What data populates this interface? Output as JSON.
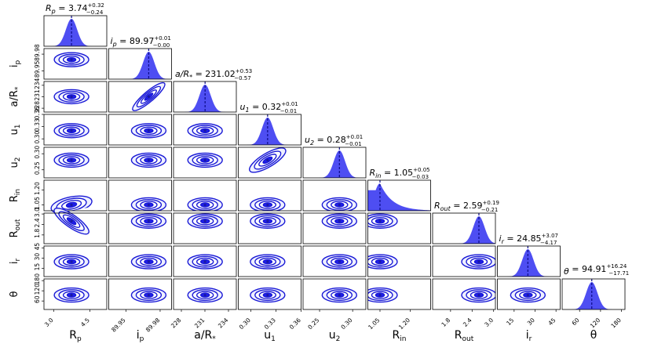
{
  "chart_data": {
    "type": "corner",
    "colors": {
      "fill": "#2f2ff0",
      "fill_light": "#7f7ff6",
      "line": "#1a1ad6",
      "contour_fill": "#1f1fe8",
      "contour_bg": "#eef0ff",
      "marker": "#1a1aa0"
    },
    "parameters": [
      {
        "label": "R_p",
        "sub": "p",
        "xlabel_main": "R",
        "xlabel_sub": "p",
        "title_main": "R",
        "title_sub": "p",
        "title_eq": " = 3.74",
        "title_sup": "+0.32",
        "title_inf": "−0.24",
        "median": 3.74,
        "range": [
          2.6,
          5.2
        ],
        "xticks": [
          "3.0",
          "4.5"
        ],
        "xtick_values": [
          3.0,
          4.5
        ],
        "yticks": [],
        "ytick_values": []
      },
      {
        "label": "i_p",
        "sub": "p",
        "xlabel_main": "i",
        "xlabel_sub": "p",
        "title_main": "i",
        "title_sub": "p",
        "title_eq": " = 89.97",
        "title_sup": "+0.01",
        "title_inf": "−0.00",
        "median": 89.97,
        "range": [
          89.935,
          89.99
        ],
        "xticks": [
          "89.95",
          "89.98"
        ],
        "xtick_values": [
          89.95,
          89.98
        ],
        "yticks": [
          "89.98",
          "89.95"
        ],
        "ytick_values": [
          89.98,
          89.95
        ]
      },
      {
        "label": "a/R*",
        "sub": "",
        "xlabel_main": "a/R",
        "xlabel_sub": "*",
        "title_main": "a/R",
        "title_sub": "*",
        "title_eq": " = 231.02",
        "title_sup": "+0.53",
        "title_inf": "−0.57",
        "median": 231.02,
        "range": [
          227,
          235
        ],
        "xticks": [
          "228",
          "231",
          "234"
        ],
        "xtick_values": [
          228,
          231,
          234
        ],
        "yticks": [
          "234",
          "231",
          "228"
        ],
        "ytick_values": [
          234,
          231,
          228
        ]
      },
      {
        "label": "u_1",
        "sub": "1",
        "xlabel_main": "u",
        "xlabel_sub": "1",
        "title_main": "u",
        "title_sub": "1",
        "title_eq": " = 0.32",
        "title_sup": "+0.01",
        "title_inf": "−0.01",
        "median": 0.32,
        "range": [
          0.285,
          0.36
        ],
        "xticks": [
          "0.30",
          "0.33",
          "0.36"
        ],
        "xtick_values": [
          0.3,
          0.33,
          0.36
        ],
        "yticks": [
          "0.36",
          "0.33",
          "0.30"
        ],
        "ytick_values": [
          0.36,
          0.33,
          0.3
        ]
      },
      {
        "label": "u_2",
        "sub": "2",
        "xlabel_main": "u",
        "xlabel_sub": "2",
        "title_main": "u",
        "title_sub": "2",
        "title_eq": " = 0.28",
        "title_sup": "+0.01",
        "title_inf": "−0.01",
        "median": 0.28,
        "range": [
          0.225,
          0.32
        ],
        "xticks": [
          "0.25",
          "0.30"
        ],
        "xtick_values": [
          0.25,
          0.3
        ],
        "yticks": [
          "0.30",
          "0.25"
        ],
        "ytick_values": [
          0.3,
          0.25
        ]
      },
      {
        "label": "R_in",
        "sub": "in",
        "xlabel_main": "R",
        "xlabel_sub": "in",
        "title_main": "R",
        "title_sub": "in",
        "title_eq": " = 1.05",
        "title_sup": "+0.05",
        "title_inf": "−0.03",
        "median": 1.05,
        "range": [
          0.99,
          1.3
        ],
        "xticks": [
          "1.05",
          "1.20"
        ],
        "xtick_values": [
          1.05,
          1.2
        ],
        "yticks": [
          "1.20",
          "1.05"
        ],
        "ytick_values": [
          1.2,
          1.05
        ]
      },
      {
        "label": "R_out",
        "sub": "out",
        "xlabel_main": "R",
        "xlabel_sub": "out",
        "title_main": "R",
        "title_sub": "out",
        "title_eq": " = 2.59",
        "title_sup": "+0.19",
        "title_inf": "−0.21",
        "median": 2.59,
        "range": [
          1.3,
          3.05
        ],
        "xticks": [
          "1.8",
          "2.4",
          "3.0"
        ],
        "xtick_values": [
          1.8,
          2.4,
          3.0
        ],
        "yticks": [
          "3.0",
          "2.4",
          "1.8"
        ],
        "ytick_values": [
          3.0,
          2.4,
          1.8
        ]
      },
      {
        "label": "i_r",
        "sub": "r",
        "xlabel_main": "i",
        "xlabel_sub": "r",
        "title_main": "i",
        "title_sub": "r",
        "title_eq": " = 24.85",
        "title_sup": "+3.07",
        "title_inf": "−4.17",
        "median": 24.85,
        "range": [
          3,
          48
        ],
        "xticks": [
          "15",
          "30",
          "45"
        ],
        "xtick_values": [
          15,
          30,
          45
        ],
        "yticks": [
          "45",
          "30",
          "15"
        ],
        "ytick_values": [
          45,
          30,
          15
        ]
      },
      {
        "label": "θ",
        "sub": "",
        "xlabel_main": "θ",
        "xlabel_sub": "",
        "title_main": "θ",
        "title_sub": "",
        "title_eq": " = 94.91",
        "title_sup": "+16.24",
        "title_inf": "−17.71",
        "median": 94.91,
        "range": [
          10,
          190
        ],
        "xticks": [
          "60",
          "120",
          "180"
        ],
        "xtick_values": [
          60,
          120,
          180
        ],
        "yticks": [
          "180",
          "120",
          "60"
        ],
        "ytick_values": [
          180,
          120,
          60
        ]
      }
    ]
  }
}
